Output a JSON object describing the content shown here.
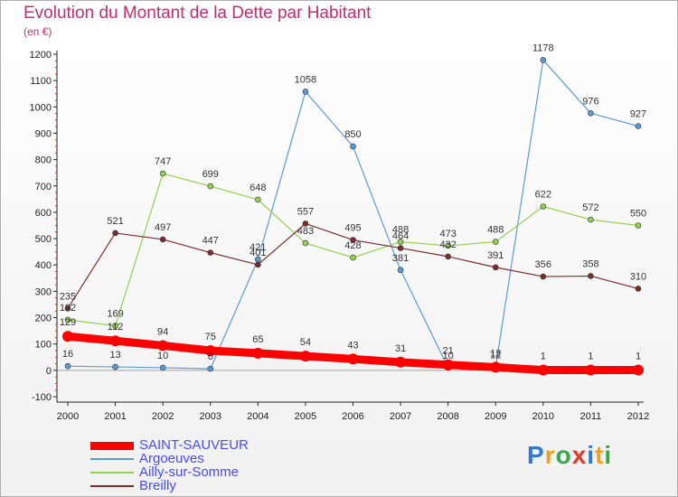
{
  "title": "Evolution du Montant de la Dette par Habitant",
  "subtitle": "(en €)",
  "logo": "Proxiti",
  "chart_data": {
    "type": "line",
    "x": [
      "2000",
      "2001",
      "2002",
      "2003",
      "2004",
      "2005",
      "2006",
      "2007",
      "2008",
      "2009",
      "2010",
      "2011",
      "2012"
    ],
    "ylim": [
      -100,
      1200
    ],
    "yticks": [
      -100,
      0,
      100,
      200,
      300,
      400,
      500,
      600,
      700,
      800,
      900,
      1000,
      1100,
      1200
    ],
    "grid": false,
    "legend_position": "bottom-left",
    "series": [
      {
        "name": "SAINT-SAUVEUR",
        "color": "#ff0000",
        "width": 9,
        "marker": 6,
        "label_dy": -12,
        "values": [
          129,
          112,
          94,
          75,
          65,
          54,
          43,
          31,
          21,
          12,
          1,
          1,
          1
        ]
      },
      {
        "name": "Argoeuves",
        "color": "#5b9bd5",
        "width": 1.2,
        "marker": 3,
        "label_dy": -10,
        "values": [
          16,
          13,
          10,
          6,
          421,
          1058,
          850,
          381,
          10,
          12,
          1178,
          976,
          927
        ]
      },
      {
        "name": "Ailly-sur-Somme",
        "color": "#92d050",
        "width": 1.2,
        "marker": 3,
        "label_dy": -10,
        "values": [
          192,
          169,
          747,
          699,
          648,
          483,
          428,
          488,
          473,
          488,
          622,
          572,
          550
        ]
      },
      {
        "name": "Breilly",
        "color": "#7b2d2d",
        "width": 1.2,
        "marker": 3,
        "label_dy": -10,
        "values": [
          235,
          521,
          497,
          447,
          401,
          557,
          495,
          464,
          432,
          391,
          356,
          358,
          310
        ]
      }
    ]
  }
}
